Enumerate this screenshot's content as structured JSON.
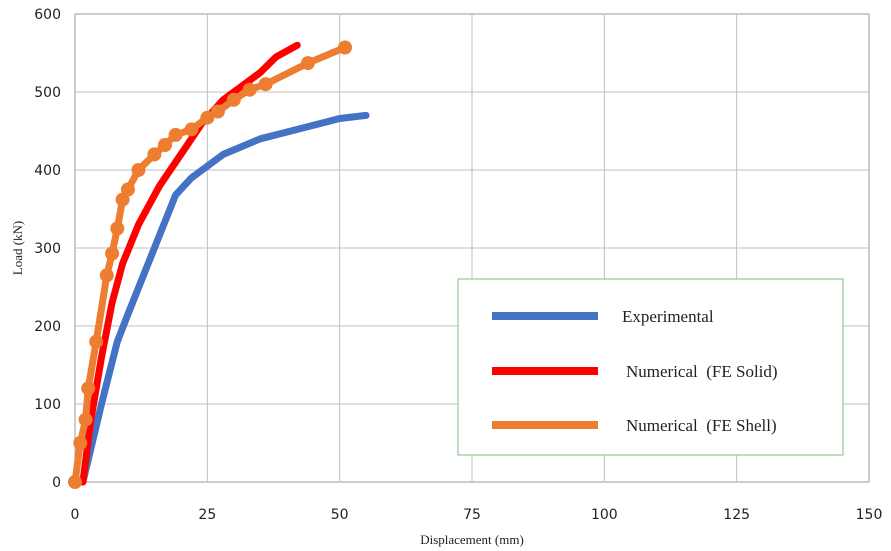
{
  "chart_data": {
    "type": "line",
    "title": "",
    "xlabel": "Displacement (mm)",
    "ylabel": "Load (kN)",
    "xlim": [
      0,
      150
    ],
    "ylim": [
      0,
      600
    ],
    "x_ticks": [
      "0",
      "25",
      "50",
      "75",
      "100",
      "125",
      "150"
    ],
    "y_ticks": [
      "0",
      "100",
      "200",
      "300",
      "400",
      "500",
      "600"
    ],
    "grid": true,
    "legend_position": "bottom-right",
    "series": [
      {
        "name": "Experimental",
        "color": "#4472C4",
        "markers": false,
        "points": [
          [
            1.5,
            0
          ],
          [
            5,
            100
          ],
          [
            8,
            180
          ],
          [
            10,
            215
          ],
          [
            15,
            300
          ],
          [
            19,
            368
          ],
          [
            22,
            390
          ],
          [
            28,
            420
          ],
          [
            35,
            440
          ],
          [
            42,
            452
          ],
          [
            50,
            466
          ],
          [
            55,
            470
          ]
        ]
      },
      {
        "name": "Numerical  (FE Solid)",
        "color": "#FF0000",
        "markers": false,
        "points": [
          [
            1.5,
            0
          ],
          [
            3,
            80
          ],
          [
            5,
            160
          ],
          [
            7,
            230
          ],
          [
            9,
            280
          ],
          [
            12,
            330
          ],
          [
            16,
            380
          ],
          [
            20,
            420
          ],
          [
            24,
            460
          ],
          [
            28,
            490
          ],
          [
            32,
            510
          ],
          [
            35,
            525
          ],
          [
            38,
            545
          ],
          [
            42,
            560
          ]
        ]
      },
      {
        "name": "Numerical  (FE Shell)",
        "color": "#ED7D31",
        "markers": true,
        "points": [
          [
            0,
            0
          ],
          [
            1,
            50
          ],
          [
            2,
            80
          ],
          [
            2.5,
            120
          ],
          [
            4,
            180
          ],
          [
            6,
            265
          ],
          [
            7,
            293
          ],
          [
            8,
            325
          ],
          [
            9,
            362
          ],
          [
            10,
            375
          ],
          [
            12,
            400
          ],
          [
            15,
            420
          ],
          [
            17,
            432
          ],
          [
            19,
            445
          ],
          [
            22,
            452
          ],
          [
            25,
            467
          ],
          [
            27,
            475
          ],
          [
            30,
            490
          ],
          [
            33,
            503
          ],
          [
            36,
            510
          ],
          [
            44,
            537
          ],
          [
            51,
            557
          ]
        ]
      }
    ]
  }
}
